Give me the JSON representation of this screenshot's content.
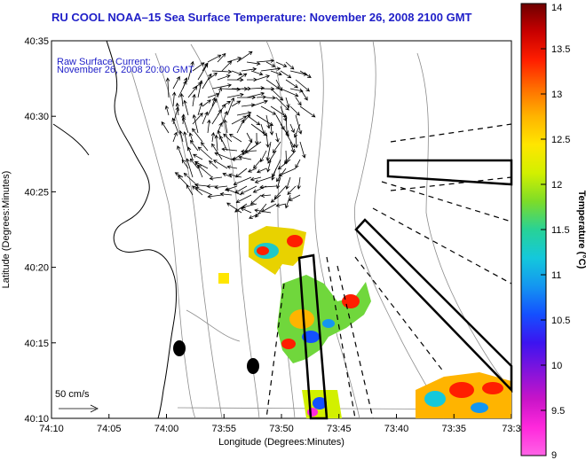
{
  "title": "RU COOL  NOAA–15  Sea Surface Temperature:  November 26, 2008 2100 GMT",
  "current_label_1": "Raw Surface Current:",
  "current_label_2": "November 26, 2008 20:00 GMT",
  "scale_label": "50 cm/s",
  "x_axis_label": "Longitude (Degrees:Minutes)",
  "y_axis_label": "Latitude (Degrees:Minutes)",
  "x_ticks": [
    "74:10",
    "74:05",
    "74:00",
    "73:55",
    "73:50",
    "73:45",
    "73:40",
    "73:35",
    "73:3"
  ],
  "y_ticks": [
    "40:35",
    "40:30",
    "40:25",
    "40:20",
    "40:15",
    "40:10"
  ],
  "colorbar": {
    "label": "Temperature (°C)",
    "ticks": [
      "14",
      "13.5",
      "13",
      "12.5",
      "12",
      "11.5",
      "11",
      "10.5",
      "10",
      "9.5",
      "9"
    ],
    "colors": [
      "#6e0000",
      "#c80000",
      "#ff1e00",
      "#ff6e00",
      "#ffb400",
      "#ffe600",
      "#d2f000",
      "#7ddc28",
      "#28d296",
      "#14c8dc",
      "#1496f0",
      "#1450ff",
      "#3c14f0",
      "#8214dc",
      "#c814c8",
      "#ff28dc",
      "#ff64e6"
    ]
  }
}
